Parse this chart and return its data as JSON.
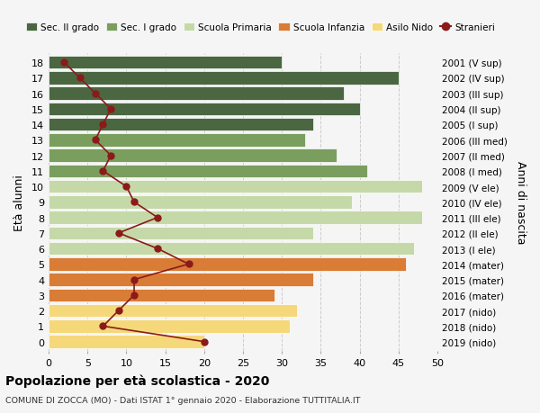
{
  "ages": [
    0,
    1,
    2,
    3,
    4,
    5,
    6,
    7,
    8,
    9,
    10,
    11,
    12,
    13,
    14,
    15,
    16,
    17,
    18
  ],
  "years": [
    "2019 (nido)",
    "2018 (nido)",
    "2017 (nido)",
    "2016 (mater)",
    "2015 (mater)",
    "2014 (mater)",
    "2013 (I ele)",
    "2012 (II ele)",
    "2011 (III ele)",
    "2010 (IV ele)",
    "2009 (V ele)",
    "2008 (I med)",
    "2007 (II med)",
    "2006 (III med)",
    "2005 (I sup)",
    "2004 (II sup)",
    "2003 (III sup)",
    "2002 (IV sup)",
    "2001 (V sup)"
  ],
  "bar_values": [
    20,
    31,
    32,
    29,
    34,
    46,
    47,
    34,
    48,
    39,
    48,
    41,
    37,
    33,
    34,
    40,
    38,
    45,
    30
  ],
  "bar_colors": [
    "#f5d87a",
    "#f5d87a",
    "#f5d87a",
    "#d97c35",
    "#d97c35",
    "#d97c35",
    "#c5d9a8",
    "#c5d9a8",
    "#c5d9a8",
    "#c5d9a8",
    "#c5d9a8",
    "#7a9e5e",
    "#7a9e5e",
    "#7a9e5e",
    "#4a6741",
    "#4a6741",
    "#4a6741",
    "#4a6741",
    "#4a6741"
  ],
  "stranieri_values": [
    20,
    7,
    9,
    11,
    11,
    18,
    14,
    9,
    14,
    11,
    10,
    7,
    8,
    6,
    7,
    8,
    6,
    4,
    2
  ],
  "legend_labels": [
    "Sec. II grado",
    "Sec. I grado",
    "Scuola Primaria",
    "Scuola Infanzia",
    "Asilo Nido",
    "Stranieri"
  ],
  "legend_colors": [
    "#4a6741",
    "#7a9e5e",
    "#c5d9a8",
    "#d97c35",
    "#f5d87a",
    "#8b1a1a"
  ],
  "title": "Popolazione per età scolastica - 2020",
  "subtitle": "COMUNE DI ZOCCA (MO) - Dati ISTAT 1° gennaio 2020 - Elaborazione TUTTITALIA.IT",
  "ylabel_left": "Età alunni",
  "ylabel_right": "Anni di nascita",
  "xlim": [
    0,
    50
  ],
  "xticks": [
    0,
    5,
    10,
    15,
    20,
    25,
    30,
    35,
    40,
    45,
    50
  ],
  "bg_color": "#f5f5f5",
  "bar_height": 0.85,
  "grid_color": "#cccccc",
  "stranieri_line_color": "#8b1a1a",
  "stranieri_dot_color": "#8b1a1a"
}
